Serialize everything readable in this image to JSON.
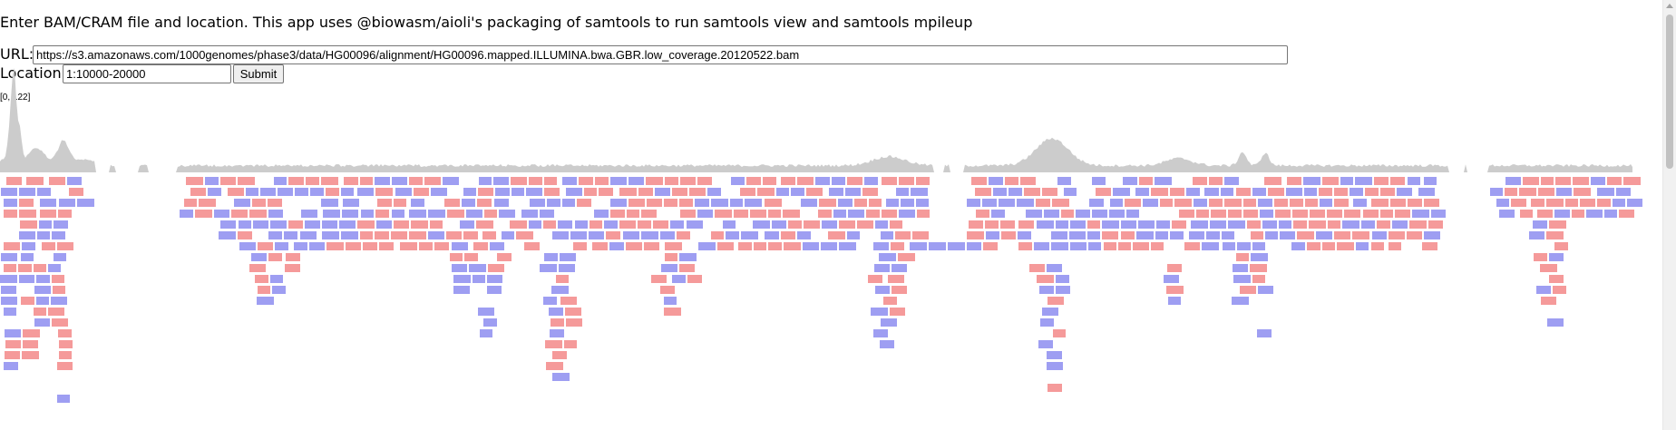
{
  "intro_text": "Enter BAM/CRAM file and location. This app uses @biowasm/aioli's packaging of samtools to run samtools view and samtools mpileup",
  "form": {
    "url_label": "URL:",
    "url_value": "https://s3.amazonaws.com/1000genomes/phase3/data/HG00096/alignment/HG00096.mapped.ILLUMINA.bwa.GBR.low_coverage.20120522.bam",
    "location_label": "Location:",
    "location_value": "1:10000-20000",
    "submit_label": "Submit"
  },
  "coverage": {
    "range_label": "[0, 122]",
    "fill_color": "#cccccc"
  },
  "reads": {
    "forward_color": "#f59a9a",
    "reverse_color": "#9e9ef2"
  },
  "scrollbar": {
    "icon": "scrollbar"
  }
}
